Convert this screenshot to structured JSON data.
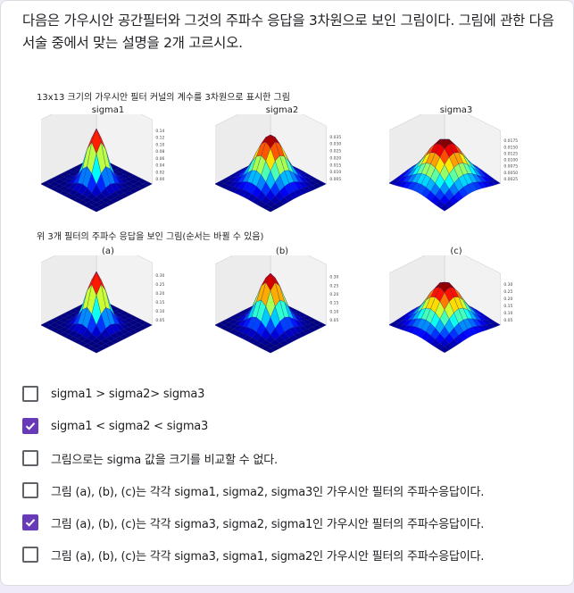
{
  "question": {
    "text": "다음은 가우시안 공간필터와 그것의 주파수 응답을 3차원으로 보인 그림이다. 그림에 관한 다음 서술 중에서 맞는 설명을 2개 고르시오."
  },
  "figure": {
    "caption_top": "13x13 크기의 가우시안 필터 커널의 계수를 3차원으로 표시한 그림",
    "caption_bottom": "위 3개 필터의 주파수 응답을 보인 그림(순서는 바뀔 수 있음)",
    "panels_top": [
      {
        "title": "sigma1",
        "ticks": [
          "0.14",
          "0.12",
          "0.10",
          "0.08",
          "0.06",
          "0.04",
          "0.02",
          "0.00"
        ]
      },
      {
        "title": "sigma2",
        "ticks": [
          "0.035",
          "0.030",
          "0.025",
          "0.020",
          "0.015",
          "0.010",
          "0.005"
        ]
      },
      {
        "title": "sigma3",
        "ticks": [
          "0.0175",
          "0.0150",
          "0.0125",
          "0.0100",
          "0.0075",
          "0.0050",
          "0.0025"
        ]
      }
    ],
    "panels_bottom": [
      {
        "title": "(a)",
        "ticks": [
          "0.30",
          "0.25",
          "0.20",
          "0.15",
          "0.10",
          "0.05"
        ]
      },
      {
        "title": "(b)",
        "ticks": [
          "0.30",
          "0.25",
          "0.20",
          "0.15",
          "0.10",
          "0.05"
        ]
      },
      {
        "title": "(c)",
        "ticks": [
          "0.30",
          "0.25",
          "0.20",
          "0.15",
          "0.10",
          "0.05"
        ]
      }
    ]
  },
  "options": [
    {
      "label": "sigma1 > sigma2> sigma3",
      "checked": false
    },
    {
      "label": "sigma1 < sigma2 < sigma3",
      "checked": true
    },
    {
      "label": "그림으로는 sigma 값을 크기를 비교할 수 없다.",
      "checked": false
    },
    {
      "label": "그림 (a), (b), (c)는 각각 sigma1, sigma2, sigma3인 가우시안 필터의 주파수응답이다.",
      "checked": false
    },
    {
      "label": "그림 (a), (b), (c)는 각각 sigma3, sigma2, sigma1인 가우시안 필터의 주파수응답이다.",
      "checked": true
    },
    {
      "label": "그림 (a), (b), (c)는 각각 sigma3, sigma1, sigma2인 가우시안 필터의 주파수응답이다.",
      "checked": false
    }
  ],
  "colors": {
    "accent": "#673ab7",
    "checkbox_border": "#5f6368"
  }
}
